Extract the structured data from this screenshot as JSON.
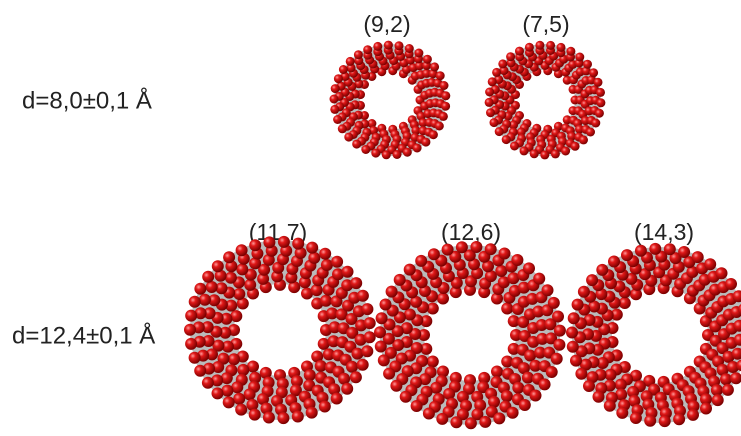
{
  "rows": [
    {
      "label": "d=8,0±0,1 Å",
      "tubes": [
        "(9,2)",
        "(7,5)"
      ]
    },
    {
      "label": "d=12,4±0,1 Å",
      "tubes": [
        "(11,7)",
        "(12,6)",
        "(14,3)"
      ]
    }
  ]
}
